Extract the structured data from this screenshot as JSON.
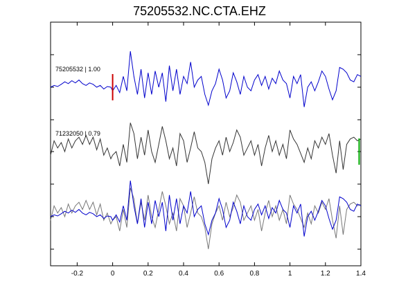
{
  "chart_data": {
    "type": "line",
    "title": "75205532.NC.CTA.EHZ",
    "xlabel": "",
    "ylabel": "",
    "xlim": [
      -0.35,
      1.4
    ],
    "x_ticks": [
      -0.2,
      0,
      0.2,
      0.4,
      0.6,
      0.8,
      1,
      1.2,
      1.4
    ],
    "x_tick_labels": [
      "-0.2",
      "0",
      "0.2",
      "0.4",
      "0.6",
      "0.8",
      "1",
      "1.2",
      "1.4"
    ],
    "grid": false,
    "traces": [
      {
        "label": "75205532 | 1.00",
        "color": "#0000cc",
        "row": 1,
        "x": [
          -0.35,
          -0.33,
          -0.31,
          -0.29,
          -0.27,
          -0.25,
          -0.23,
          -0.21,
          -0.19,
          -0.17,
          -0.15,
          -0.13,
          -0.11,
          -0.09,
          -0.07,
          -0.05,
          -0.03,
          -0.01,
          0.0,
          0.02,
          0.04,
          0.06,
          0.08,
          0.1,
          0.12,
          0.14,
          0.16,
          0.18,
          0.2,
          0.22,
          0.24,
          0.26,
          0.28,
          0.3,
          0.32,
          0.34,
          0.36,
          0.38,
          0.4,
          0.42,
          0.44,
          0.46,
          0.48,
          0.5,
          0.52,
          0.54,
          0.56,
          0.58,
          0.6,
          0.62,
          0.64,
          0.66,
          0.68,
          0.7,
          0.72,
          0.74,
          0.76,
          0.78,
          0.8,
          0.82,
          0.84,
          0.86,
          0.88,
          0.9,
          0.92,
          0.94,
          0.96,
          0.98,
          1.0,
          1.02,
          1.04,
          1.06,
          1.08,
          1.1,
          1.12,
          1.14,
          1.16,
          1.18,
          1.2,
          1.22,
          1.24,
          1.26,
          1.28,
          1.3,
          1.32,
          1.34,
          1.36,
          1.38,
          1.4
        ],
        "y": [
          0.0,
          0.05,
          0.02,
          0.08,
          0.15,
          0.1,
          0.18,
          0.12,
          0.2,
          0.1,
          0.05,
          0.12,
          0.08,
          0.0,
          0.05,
          -0.05,
          0.02,
          0.0,
          -0.1,
          0.05,
          -0.15,
          0.3,
          -0.1,
          1.0,
          0.3,
          -0.2,
          0.5,
          -0.3,
          0.4,
          -0.2,
          0.45,
          0.0,
          0.4,
          -0.4,
          0.6,
          -0.1,
          0.5,
          -0.2,
          0.3,
          0.1,
          0.7,
          0.0,
          0.2,
          0.3,
          -0.2,
          -0.5,
          -0.1,
          0.1,
          0.5,
          0.2,
          -0.3,
          -0.1,
          0.4,
          0.15,
          -0.2,
          0.3,
          0.0,
          -0.1,
          0.2,
          0.35,
          0.05,
          0.3,
          -0.05,
          0.25,
          0.1,
          0.45,
          0.2,
          0.1,
          -0.3,
          0.3,
          0.1,
          0.35,
          -0.55,
          0.0,
          0.15,
          -0.1,
          0.15,
          0.45,
          0.3,
          -0.05,
          -0.35,
          -0.1,
          0.55,
          0.5,
          0.4,
          0.2,
          0.15,
          0.35,
          0.3
        ]
      },
      {
        "label": "71232050 | 0.79",
        "color": "#333333",
        "row": 2,
        "x": [
          -0.35,
          -0.33,
          -0.31,
          -0.29,
          -0.27,
          -0.25,
          -0.23,
          -0.21,
          -0.19,
          -0.17,
          -0.15,
          -0.13,
          -0.11,
          -0.09,
          -0.07,
          -0.05,
          -0.03,
          -0.01,
          0.0,
          0.02,
          0.04,
          0.06,
          0.08,
          0.1,
          0.12,
          0.14,
          0.16,
          0.18,
          0.2,
          0.22,
          0.24,
          0.26,
          0.28,
          0.3,
          0.32,
          0.34,
          0.36,
          0.38,
          0.4,
          0.42,
          0.44,
          0.46,
          0.48,
          0.5,
          0.52,
          0.54,
          0.56,
          0.58,
          0.6,
          0.62,
          0.64,
          0.66,
          0.68,
          0.7,
          0.72,
          0.74,
          0.76,
          0.78,
          0.8,
          0.82,
          0.84,
          0.86,
          0.88,
          0.9,
          0.92,
          0.94,
          0.96,
          0.98,
          1.0,
          1.02,
          1.04,
          1.06,
          1.08,
          1.1,
          1.12,
          1.14,
          1.16,
          1.18,
          1.2,
          1.22,
          1.24,
          1.26,
          1.28,
          1.3,
          1.32,
          1.34,
          1.36,
          1.38,
          1.4
        ],
        "y": [
          -0.1,
          0.3,
          0.1,
          0.25,
          0.0,
          0.35,
          0.1,
          0.3,
          0.4,
          0.2,
          0.45,
          0.2,
          0.4,
          0.05,
          0.35,
          -0.1,
          0.1,
          -0.2,
          -0.1,
          0.0,
          -0.4,
          0.2,
          -0.3,
          0.8,
          0.5,
          -0.2,
          0.4,
          -0.1,
          0.6,
          0.0,
          -0.3,
          0.2,
          0.7,
          0.3,
          -0.2,
          0.1,
          -0.4,
          0.5,
          0.3,
          -0.3,
          0.1,
          0.55,
          0.1,
          0.0,
          -0.3,
          -0.9,
          -0.2,
          0.1,
          0.3,
          -0.1,
          0.4,
          0.0,
          0.25,
          0.6,
          0.4,
          -0.1,
          0.1,
          0.3,
          -0.1,
          0.2,
          -0.4,
          0.1,
          0.45,
          0.0,
          0.3,
          -0.1,
          0.2,
          -0.2,
          0.6,
          0.35,
          0.2,
          -0.05,
          -0.3,
          0.1,
          -0.2,
          0.3,
          0.1,
          0.4,
          0.2,
          0.5,
          -0.1,
          -0.6,
          0.3,
          -0.5,
          0.2,
          0.35,
          0.4,
          0.3,
          0.35
        ]
      },
      {
        "label": "",
        "color": "#0000cc",
        "row": 3,
        "x": [
          -0.35,
          -0.33,
          -0.31,
          -0.29,
          -0.27,
          -0.25,
          -0.23,
          -0.21,
          -0.19,
          -0.17,
          -0.15,
          -0.13,
          -0.11,
          -0.09,
          -0.07,
          -0.05,
          -0.03,
          -0.01,
          0.0,
          0.02,
          0.04,
          0.06,
          0.08,
          0.1,
          0.12,
          0.14,
          0.16,
          0.18,
          0.2,
          0.22,
          0.24,
          0.26,
          0.28,
          0.3,
          0.32,
          0.34,
          0.36,
          0.38,
          0.4,
          0.42,
          0.44,
          0.46,
          0.48,
          0.5,
          0.52,
          0.54,
          0.56,
          0.58,
          0.6,
          0.62,
          0.64,
          0.66,
          0.68,
          0.7,
          0.72,
          0.74,
          0.76,
          0.78,
          0.8,
          0.82,
          0.84,
          0.86,
          0.88,
          0.9,
          0.92,
          0.94,
          0.96,
          0.98,
          1.0,
          1.02,
          1.04,
          1.06,
          1.08,
          1.1,
          1.12,
          1.14,
          1.16,
          1.18,
          1.2,
          1.22,
          1.24,
          1.26,
          1.28,
          1.3,
          1.32,
          1.34,
          1.36,
          1.38,
          1.4
        ],
        "y": [
          0.0,
          0.05,
          0.02,
          0.08,
          0.15,
          0.1,
          0.18,
          0.12,
          0.2,
          0.1,
          0.05,
          0.12,
          0.08,
          0.0,
          0.05,
          -0.05,
          0.02,
          0.0,
          -0.1,
          0.05,
          -0.15,
          0.3,
          -0.1,
          1.0,
          0.3,
          -0.2,
          0.5,
          -0.3,
          0.4,
          -0.2,
          0.45,
          0.0,
          0.4,
          -0.4,
          0.6,
          -0.1,
          0.5,
          -0.2,
          0.3,
          0.1,
          0.7,
          0.0,
          0.2,
          0.3,
          -0.2,
          -0.5,
          -0.1,
          0.1,
          0.5,
          0.2,
          -0.3,
          -0.1,
          0.4,
          0.15,
          -0.2,
          0.3,
          0.0,
          -0.1,
          0.2,
          0.35,
          0.05,
          0.3,
          -0.05,
          0.25,
          0.1,
          0.45,
          0.2,
          0.1,
          -0.3,
          0.3,
          0.1,
          0.35,
          -0.55,
          0.0,
          0.15,
          -0.1,
          0.15,
          0.45,
          0.3,
          -0.05,
          -0.35,
          -0.1,
          0.55,
          0.5,
          0.4,
          0.2,
          0.15,
          0.35,
          0.3
        ]
      },
      {
        "label": "",
        "color": "#777777",
        "row": 3,
        "x": [
          -0.35,
          -0.33,
          -0.31,
          -0.29,
          -0.27,
          -0.25,
          -0.23,
          -0.21,
          -0.19,
          -0.17,
          -0.15,
          -0.13,
          -0.11,
          -0.09,
          -0.07,
          -0.05,
          -0.03,
          -0.01,
          0.0,
          0.02,
          0.04,
          0.06,
          0.08,
          0.1,
          0.12,
          0.14,
          0.16,
          0.18,
          0.2,
          0.22,
          0.24,
          0.26,
          0.28,
          0.3,
          0.32,
          0.34,
          0.36,
          0.38,
          0.4,
          0.42,
          0.44,
          0.46,
          0.48,
          0.5,
          0.52,
          0.54,
          0.56,
          0.58,
          0.6,
          0.62,
          0.64,
          0.66,
          0.68,
          0.7,
          0.72,
          0.74,
          0.76,
          0.78,
          0.8,
          0.82,
          0.84,
          0.86,
          0.88,
          0.9,
          0.92,
          0.94,
          0.96,
          0.98,
          1.0,
          1.02,
          1.04,
          1.06,
          1.08,
          1.1,
          1.12,
          1.14,
          1.16,
          1.18,
          1.2,
          1.22,
          1.24,
          1.26,
          1.28,
          1.3,
          1.32,
          1.34,
          1.36,
          1.38,
          1.4
        ],
        "y": [
          -0.1,
          0.3,
          0.1,
          0.25,
          0.0,
          0.35,
          0.1,
          0.3,
          0.4,
          0.2,
          0.45,
          0.2,
          0.4,
          0.05,
          0.35,
          -0.1,
          0.1,
          -0.2,
          -0.1,
          0.0,
          -0.4,
          0.2,
          -0.3,
          0.8,
          0.5,
          -0.2,
          0.4,
          -0.1,
          0.6,
          0.0,
          -0.3,
          0.2,
          0.7,
          0.3,
          -0.2,
          0.1,
          -0.4,
          0.5,
          0.3,
          -0.3,
          0.1,
          0.55,
          0.1,
          0.0,
          -0.3,
          -0.9,
          -0.2,
          0.1,
          0.3,
          -0.1,
          0.4,
          0.0,
          0.25,
          0.6,
          0.4,
          -0.1,
          0.1,
          0.3,
          -0.1,
          0.2,
          -0.4,
          0.1,
          0.45,
          0.0,
          0.3,
          -0.1,
          0.2,
          -0.2,
          0.6,
          0.35,
          0.2,
          -0.05,
          -0.3,
          0.1,
          -0.2,
          0.3,
          0.1,
          0.4,
          0.2,
          0.5,
          -0.1,
          -0.6,
          0.3,
          -0.5,
          0.2,
          0.35,
          0.4,
          0.3,
          0.35
        ]
      }
    ],
    "pick_markers": [
      {
        "x": 0.0,
        "row": 1,
        "color": "#cc0000"
      },
      {
        "x": 1.39,
        "row": 2,
        "color": "#00aa00"
      }
    ]
  }
}
